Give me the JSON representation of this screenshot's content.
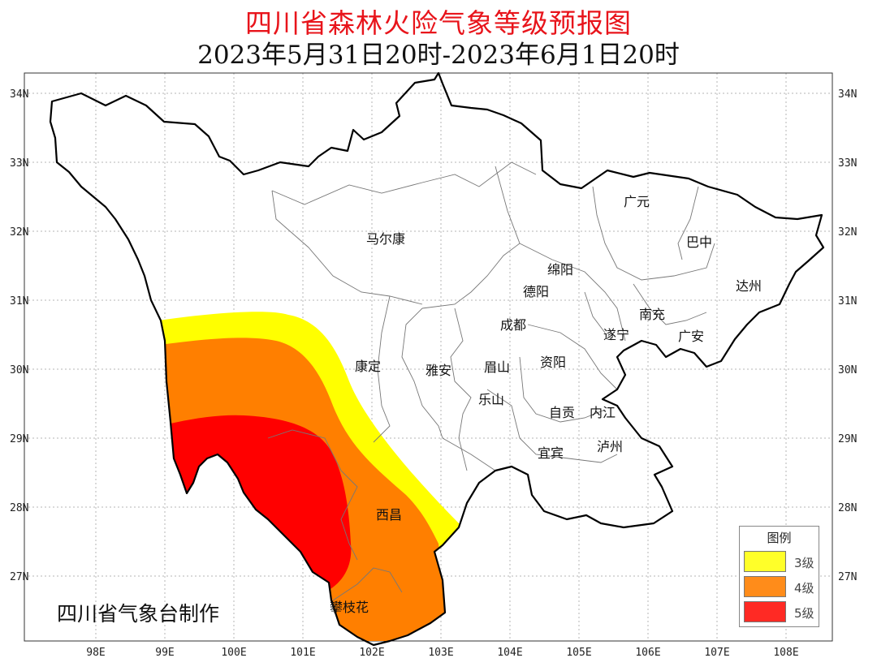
{
  "title": "四川省森林火险气象等级预报图",
  "subtitle": "2023年5月31日20时-2023年6月1日20时",
  "credit": "四川省气象台制作",
  "legend": {
    "title": "图例",
    "items": [
      {
        "label": "3级",
        "color": "#ffff29"
      },
      {
        "label": "4级",
        "color": "#ff8c1a"
      },
      {
        "label": "5级",
        "color": "#ff2a24"
      }
    ]
  },
  "colors": {
    "level3": "#ffff00",
    "level4": "#ff7f00",
    "level5": "#ff0000",
    "border": "#000000",
    "grid": "#b4b4b4"
  },
  "axes": {
    "left_lat": [
      "34N",
      "33N",
      "32N",
      "31N",
      "30N",
      "29N",
      "28N",
      "27N"
    ],
    "right_lat": [
      "34N",
      "33N",
      "32N",
      "31N",
      "30N",
      "29N",
      "28N",
      "27N"
    ],
    "bottom_lon": [
      "98E",
      "99E",
      "100E",
      "101E",
      "102E",
      "103E",
      "104E",
      "105E",
      "106E",
      "107E",
      "108E"
    ]
  },
  "cities": [
    {
      "name": "广元"
    },
    {
      "name": "马尔康"
    },
    {
      "name": "巴中"
    },
    {
      "name": "绵阳"
    },
    {
      "name": "德阳"
    },
    {
      "name": "达州"
    },
    {
      "name": "南充"
    },
    {
      "name": "成都"
    },
    {
      "name": "遂宁"
    },
    {
      "name": "广安"
    },
    {
      "name": "康定"
    },
    {
      "name": "雅安"
    },
    {
      "name": "眉山"
    },
    {
      "name": "资阳"
    },
    {
      "name": "乐山"
    },
    {
      "name": "自贡"
    },
    {
      "name": "内江"
    },
    {
      "name": "泸州"
    },
    {
      "name": "宜宾"
    },
    {
      "name": "西昌"
    },
    {
      "name": "攀枝花"
    }
  ]
}
